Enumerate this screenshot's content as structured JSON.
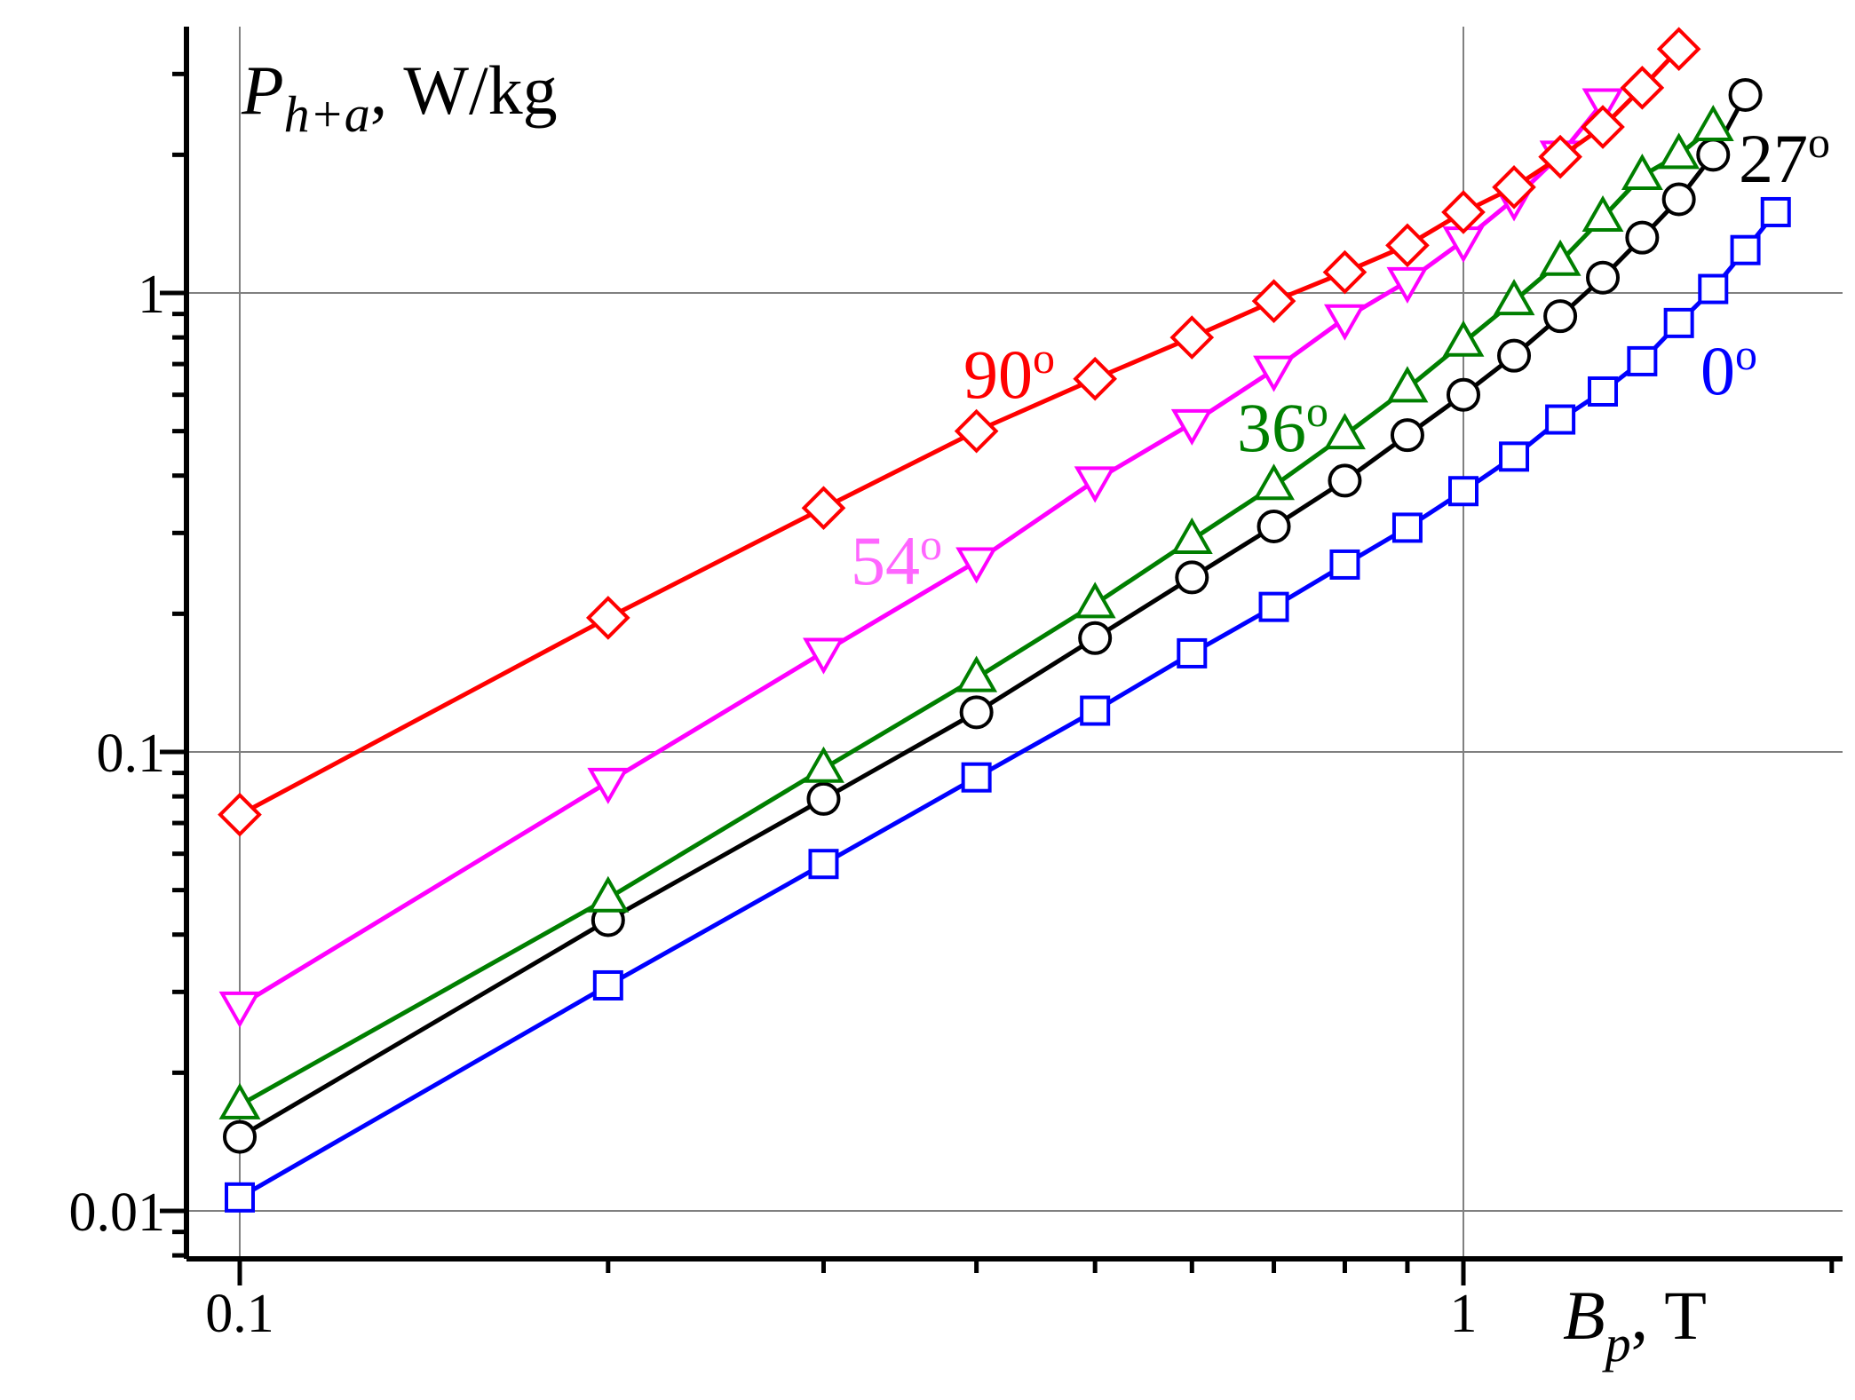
{
  "chart_data": {
    "type": "line",
    "title": "",
    "xscale": "log",
    "yscale": "log",
    "xlim": [
      0.09,
      2.3
    ],
    "ylim": [
      0.007,
      4.5
    ],
    "grid": true,
    "xlabel": {
      "main": "B",
      "sub": "p",
      "suffix": ", T"
    },
    "ylabel": {
      "main": "P",
      "sub": "h+a",
      "suffix": ", W/kg"
    },
    "x_ticks": [
      {
        "value": 0.1,
        "label": "0.1"
      },
      {
        "value": 1,
        "label": "1"
      }
    ],
    "y_ticks": [
      {
        "value": 0.01,
        "label": "0.01"
      },
      {
        "value": 0.1,
        "label": "0.1"
      },
      {
        "value": 1,
        "label": "1"
      }
    ],
    "series": [
      {
        "name": "90°",
        "label_main": "90",
        "label_sup": "o",
        "color": "#ff0000",
        "marker": "diamond",
        "x": [
          0.1,
          0.2,
          0.3,
          0.4,
          0.5,
          0.6,
          0.7,
          0.8,
          0.9,
          1.0,
          1.1,
          1.2,
          1.3,
          1.4,
          1.5
        ],
        "y": [
          0.073,
          0.196,
          0.34,
          0.5,
          0.65,
          0.8,
          0.96,
          1.11,
          1.27,
          1.5,
          1.7,
          1.98,
          2.3,
          2.8,
          3.4
        ]
      },
      {
        "name": "54°",
        "label_main": "54",
        "label_sup": "o",
        "color": "#ff00ff",
        "label_color": "#ff66ff",
        "marker": "triangle-down",
        "x": [
          0.1,
          0.2,
          0.3,
          0.4,
          0.5,
          0.6,
          0.7,
          0.8,
          0.9,
          1.0,
          1.1,
          1.2,
          1.3
        ],
        "y": [
          0.028,
          0.086,
          0.165,
          0.26,
          0.39,
          0.52,
          0.68,
          0.88,
          1.06,
          1.3,
          1.6,
          2.0,
          2.6
        ]
      },
      {
        "name": "36°",
        "label_main": "36",
        "label_sup": "o",
        "color": "#007f00",
        "marker": "triangle-up",
        "x": [
          0.1,
          0.2,
          0.3,
          0.4,
          0.5,
          0.6,
          0.7,
          0.8,
          0.9,
          1.0,
          1.1,
          1.2,
          1.3,
          1.4,
          1.5,
          1.6
        ],
        "y": [
          0.017,
          0.048,
          0.092,
          0.145,
          0.21,
          0.29,
          0.38,
          0.49,
          0.62,
          0.78,
          0.96,
          1.17,
          1.46,
          1.8,
          2.0,
          2.3
        ]
      },
      {
        "name": "27°",
        "label_main": "27",
        "label_sup": "o",
        "color": "#000000",
        "marker": "circle",
        "x": [
          0.1,
          0.2,
          0.3,
          0.4,
          0.5,
          0.6,
          0.7,
          0.8,
          0.9,
          1.0,
          1.1,
          1.2,
          1.3,
          1.4,
          1.5,
          1.6,
          1.7
        ],
        "y": [
          0.0145,
          0.043,
          0.079,
          0.122,
          0.177,
          0.24,
          0.31,
          0.39,
          0.49,
          0.6,
          0.73,
          0.89,
          1.08,
          1.32,
          1.6,
          2.0,
          2.7
        ]
      },
      {
        "name": "0°",
        "label_main": "0",
        "label_sup": "o",
        "color": "#0000ff",
        "marker": "square",
        "x": [
          0.1,
          0.2,
          0.3,
          0.4,
          0.5,
          0.6,
          0.7,
          0.8,
          0.9,
          1.0,
          1.1,
          1.2,
          1.3,
          1.4,
          1.5,
          1.6,
          1.7,
          1.8
        ],
        "y": [
          0.0107,
          0.031,
          0.057,
          0.088,
          0.123,
          0.164,
          0.207,
          0.256,
          0.308,
          0.37,
          0.44,
          0.53,
          0.61,
          0.71,
          0.86,
          1.02,
          1.24,
          1.5
        ]
      }
    ]
  }
}
